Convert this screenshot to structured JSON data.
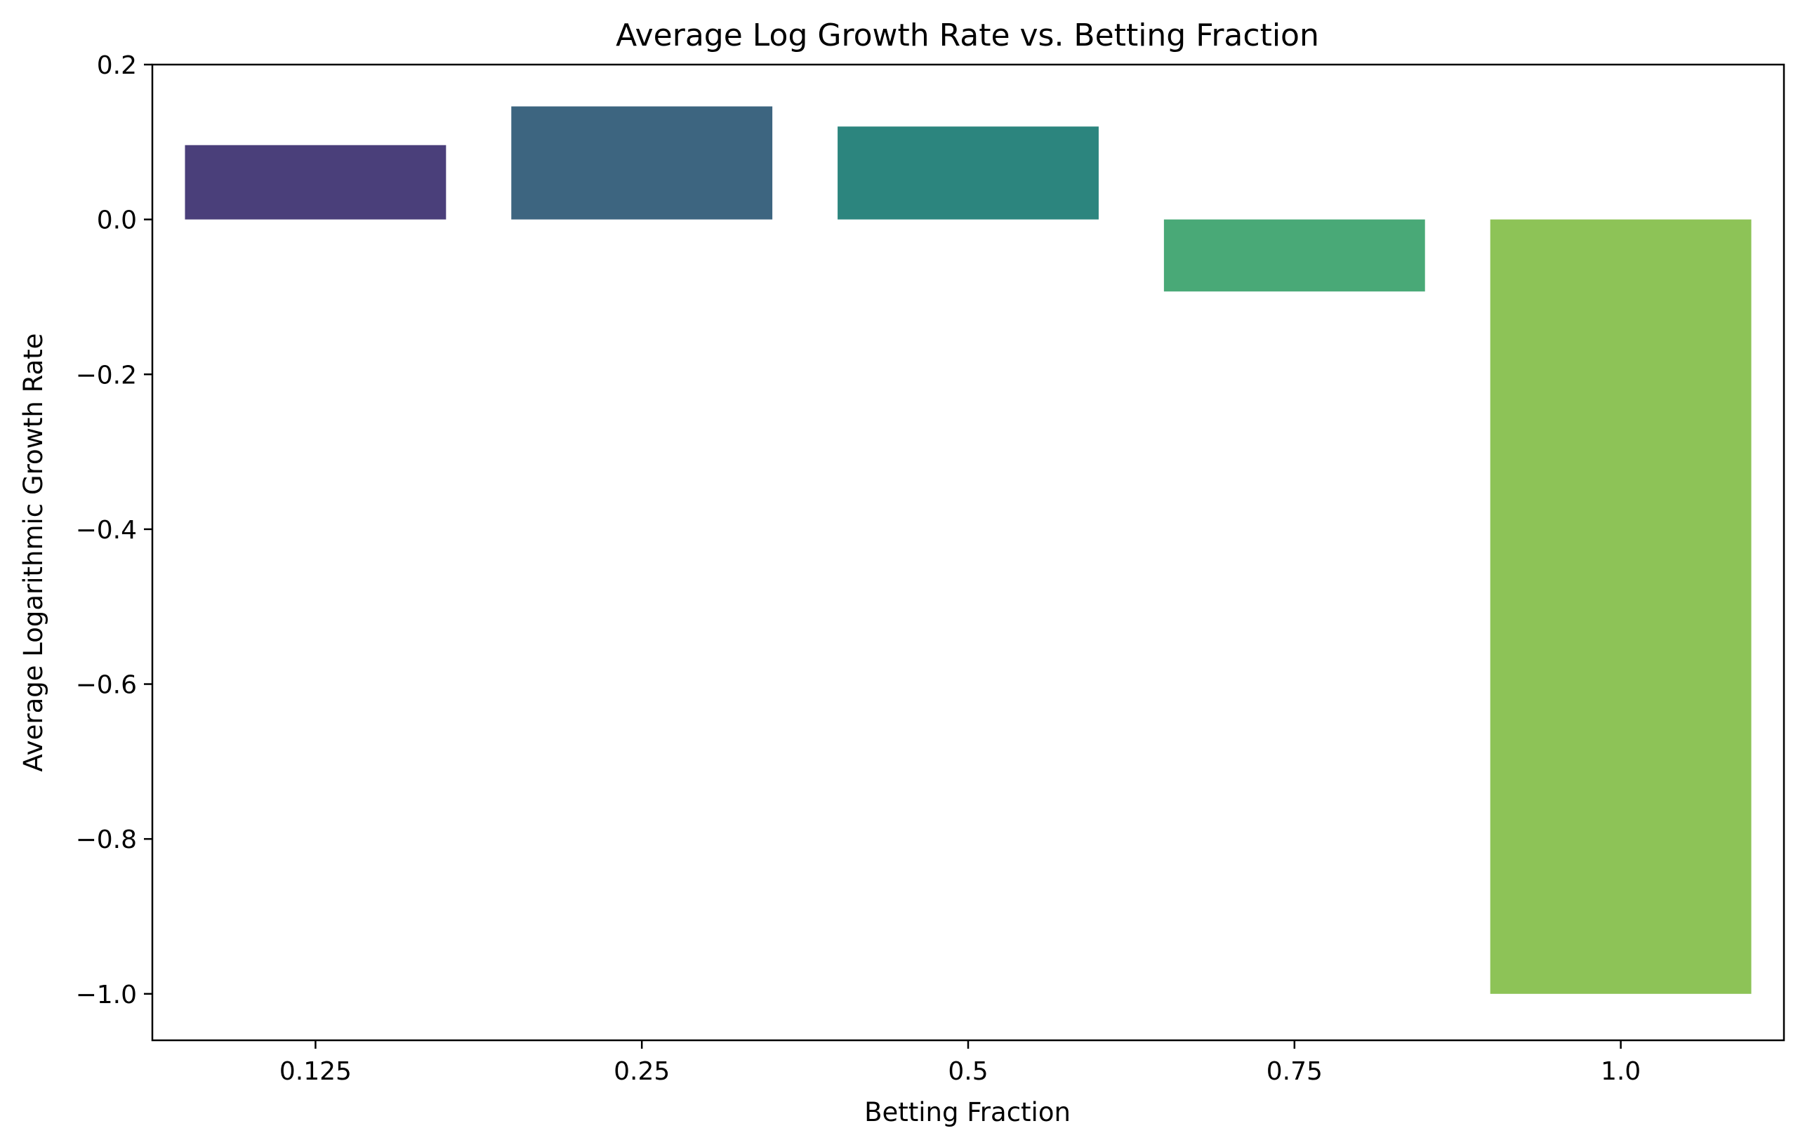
{
  "chart_data": {
    "type": "bar",
    "title": "Average Log Growth Rate vs. Betting Fraction",
    "xlabel": "Betting Fraction",
    "ylabel": "Average Logarithmic Growth Rate",
    "categories": [
      "0.125",
      "0.25",
      "0.5",
      "0.75",
      "1.0"
    ],
    "values": [
      0.096,
      0.146,
      0.12,
      -0.093,
      -1.0
    ],
    "colors": [
      "#4a3f7a",
      "#3d6580",
      "#2c857e",
      "#49a977",
      "#8dc357"
    ],
    "ylim": [
      -1.06,
      0.2
    ],
    "yticks": [
      0.2,
      0.0,
      -0.2,
      -0.4,
      -0.6,
      -0.8,
      -1.0
    ],
    "ytick_labels": [
      "0.2",
      "0.0",
      "−0.2",
      "−0.4",
      "−0.6",
      "−0.8",
      "−1.0"
    ],
    "grid": false,
    "legend": "none"
  }
}
